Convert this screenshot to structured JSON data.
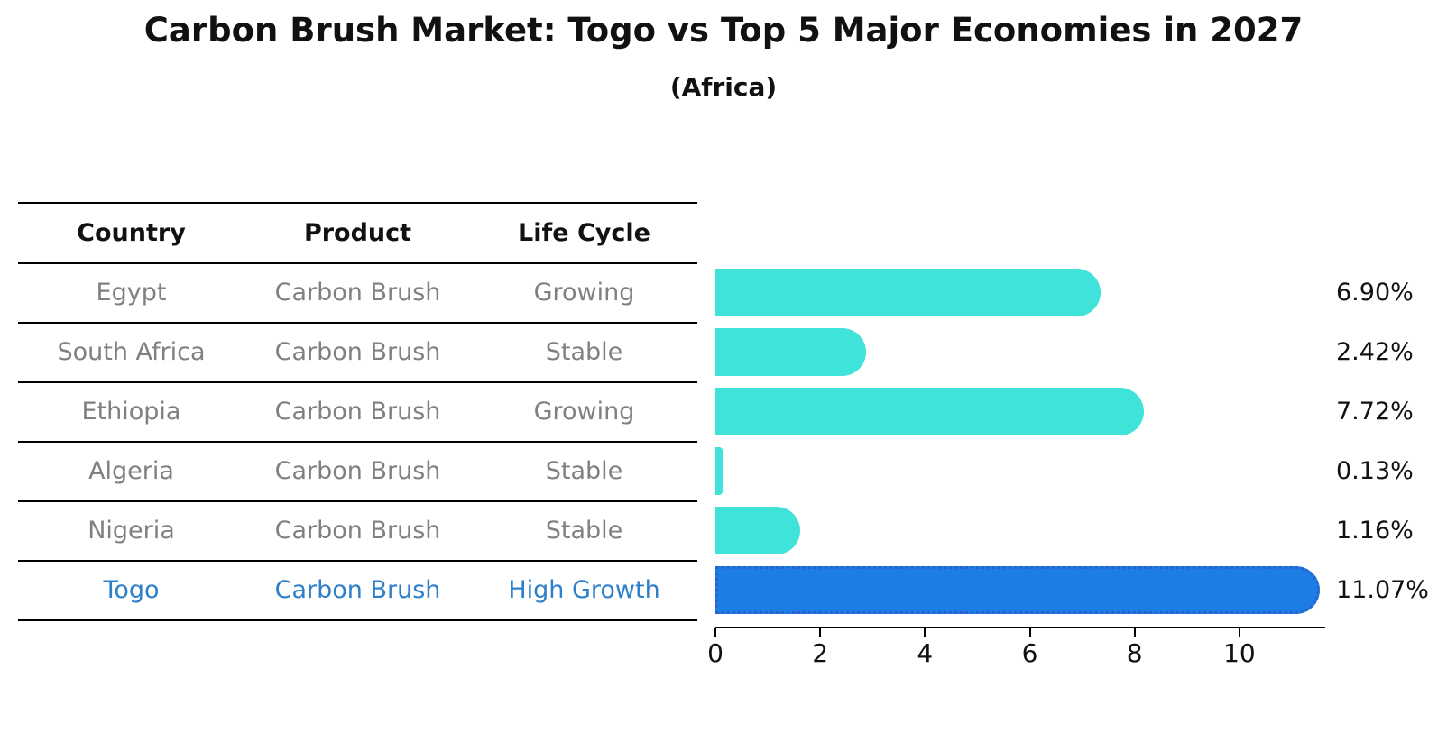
{
  "title": "Carbon Brush Market: Togo vs Top 5 Major Economies in 2027",
  "subtitle": "(Africa)",
  "table": {
    "headers": [
      "Country",
      "Product",
      "Life Cycle"
    ],
    "rows": [
      {
        "country": "Egypt",
        "product": "Carbon Brush",
        "life_cycle": "Growing",
        "highlight": false
      },
      {
        "country": "South Africa",
        "product": "Carbon Brush",
        "life_cycle": "Stable",
        "highlight": false
      },
      {
        "country": "Ethiopia",
        "product": "Carbon Brush",
        "life_cycle": "Growing",
        "highlight": false
      },
      {
        "country": "Algeria",
        "product": "Carbon Brush",
        "life_cycle": "Stable",
        "highlight": false
      },
      {
        "country": "Nigeria",
        "product": "Carbon Brush",
        "life_cycle": "Stable",
        "highlight": false
      },
      {
        "country": "Togo",
        "product": "Carbon Brush",
        "life_cycle": "High Growth",
        "highlight": true
      }
    ]
  },
  "chart_data": {
    "type": "bar",
    "orientation": "horizontal",
    "title": "Carbon Brush Market: Togo vs Top 5 Major Economies in 2027",
    "subtitle": "(Africa)",
    "categories": [
      "Egypt",
      "South Africa",
      "Ethiopia",
      "Algeria",
      "Nigeria",
      "Togo"
    ],
    "values": [
      6.9,
      2.42,
      7.72,
      0.13,
      1.16,
      11.07
    ],
    "value_labels": [
      "6.90%",
      "2.42%",
      "7.72%",
      "0.13%",
      "1.16%",
      "11.07%"
    ],
    "highlight_index": 5,
    "x_ticks": [
      0,
      2,
      4,
      6,
      8,
      10
    ],
    "xlim": [
      0,
      11.62
    ],
    "xlabel": "",
    "ylabel": "",
    "grid": false,
    "legend": "none",
    "bar_color": "#40E3DA",
    "highlight_bar_color": "#1C7DE6",
    "highlight_border_color": "#2A63C8",
    "table_text_color": "#808080",
    "highlight_text_color": "#2E7FC9",
    "axis_color": "#000000"
  }
}
